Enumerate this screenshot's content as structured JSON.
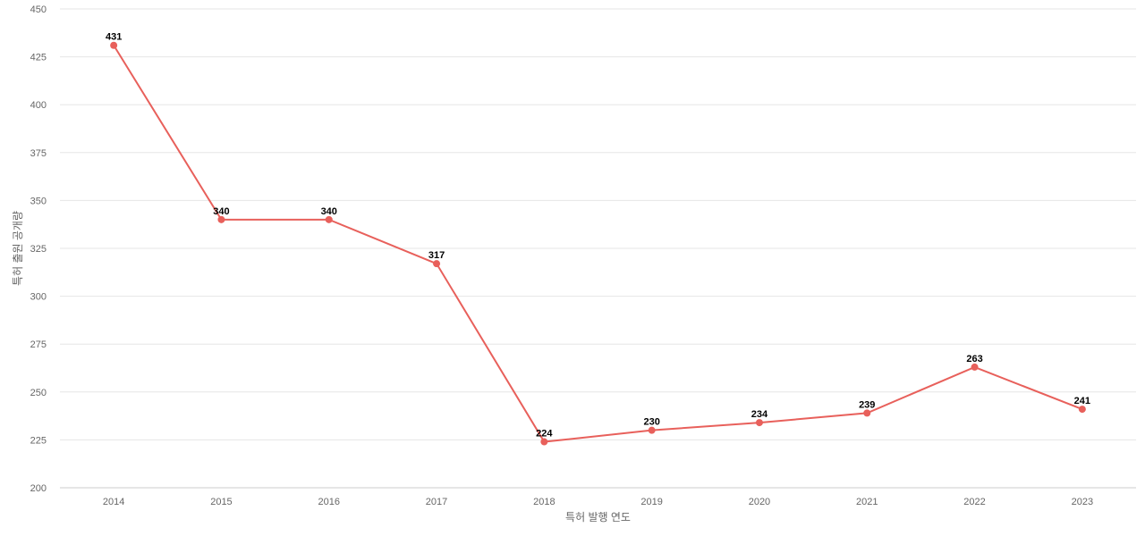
{
  "chart_data": {
    "type": "line",
    "title": "",
    "xlabel": "특허 발행 연도",
    "ylabel": "특허 출원 공개량",
    "categories": [
      "2014",
      "2015",
      "2016",
      "2017",
      "2018",
      "2019",
      "2020",
      "2021",
      "2022",
      "2023"
    ],
    "series": [
      {
        "values": [
          431,
          340,
          340,
          317,
          224,
          230,
          234,
          239,
          263,
          241
        ],
        "color": "#e8605b"
      }
    ],
    "ylim": [
      200,
      450
    ],
    "yticks": [
      200,
      225,
      250,
      275,
      300,
      325,
      350,
      375,
      400,
      425,
      450
    ],
    "grid": true,
    "legend": "none"
  }
}
